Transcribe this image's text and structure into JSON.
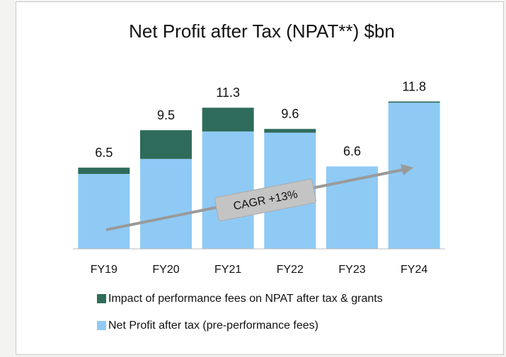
{
  "chart_data": {
    "type": "bar",
    "stacked": true,
    "title": "Net Profit after Tax (NPAT**) $bn",
    "categories": [
      "FY19",
      "FY20",
      "FY21",
      "FY22",
      "FY23",
      "FY24"
    ],
    "series": [
      {
        "name": "Net Profit after tax (pre-performance fees)",
        "color": "#8fcaf5",
        "values": [
          6.0,
          7.2,
          9.4,
          9.3,
          6.6,
          11.7
        ]
      },
      {
        "name": "Impact of performance fees on NPAT after tax & grants",
        "color": "#2e6b5a",
        "values": [
          0.5,
          2.3,
          1.9,
          0.3,
          0,
          0.1
        ]
      }
    ],
    "total_labels": [
      6.5,
      9.5,
      11.3,
      9.6,
      6.6,
      11.8
    ],
    "ylim": [
      0,
      12
    ],
    "annotation": "CAGR +13%"
  }
}
